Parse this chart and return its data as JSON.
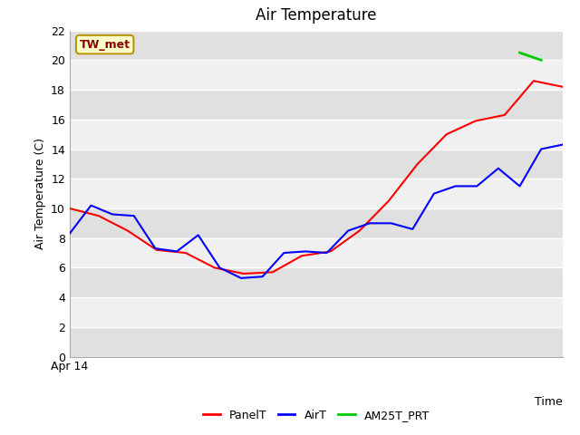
{
  "title": "Air Temperature",
  "ylabel": "Air Temperature (C)",
  "xlabel": "Time",
  "annotation": "TW_met",
  "annotation_color": "#8B0000",
  "annotation_bg": "#FFFFCC",
  "annotation_border": "#B8960C",
  "ylim": [
    0,
    22
  ],
  "yticks": [
    0,
    2,
    4,
    6,
    8,
    10,
    12,
    14,
    16,
    18,
    20,
    22
  ],
  "xstart_label": "Apr 14",
  "plot_bg_light": "#F0F0F0",
  "plot_bg_dark": "#E0E0E0",
  "PanelT": {
    "color": "red",
    "x": [
      0,
      1,
      2,
      3,
      4,
      5,
      6,
      7,
      8,
      9,
      10,
      11,
      12,
      13,
      14,
      15,
      16,
      17
    ],
    "y": [
      10.0,
      9.5,
      8.5,
      7.2,
      7.0,
      6.0,
      5.6,
      5.7,
      6.8,
      7.1,
      8.5,
      10.5,
      13.0,
      15.0,
      15.9,
      16.3,
      18.6,
      18.2
    ]
  },
  "AirT": {
    "color": "blue",
    "x": [
      0,
      1,
      2,
      3,
      4,
      5,
      6,
      7,
      8,
      9,
      10,
      11,
      12,
      13,
      14,
      15,
      16,
      17,
      18,
      19,
      20,
      21,
      22,
      23
    ],
    "y": [
      8.3,
      10.2,
      9.6,
      9.5,
      7.3,
      7.1,
      8.2,
      6.0,
      5.3,
      5.4,
      7.0,
      7.1,
      7.0,
      8.5,
      9.0,
      9.0,
      8.6,
      11.0,
      11.5,
      11.5,
      12.7,
      11.5,
      14.0,
      14.3
    ]
  },
  "AM25T_PRT": {
    "color": "#00CC00",
    "x": [
      21,
      22
    ],
    "y": [
      20.5,
      20.0
    ]
  },
  "legend": [
    {
      "label": "PanelT",
      "color": "red"
    },
    {
      "label": "AirT",
      "color": "blue"
    },
    {
      "label": "AM25T_PRT",
      "color": "#00CC00"
    }
  ]
}
